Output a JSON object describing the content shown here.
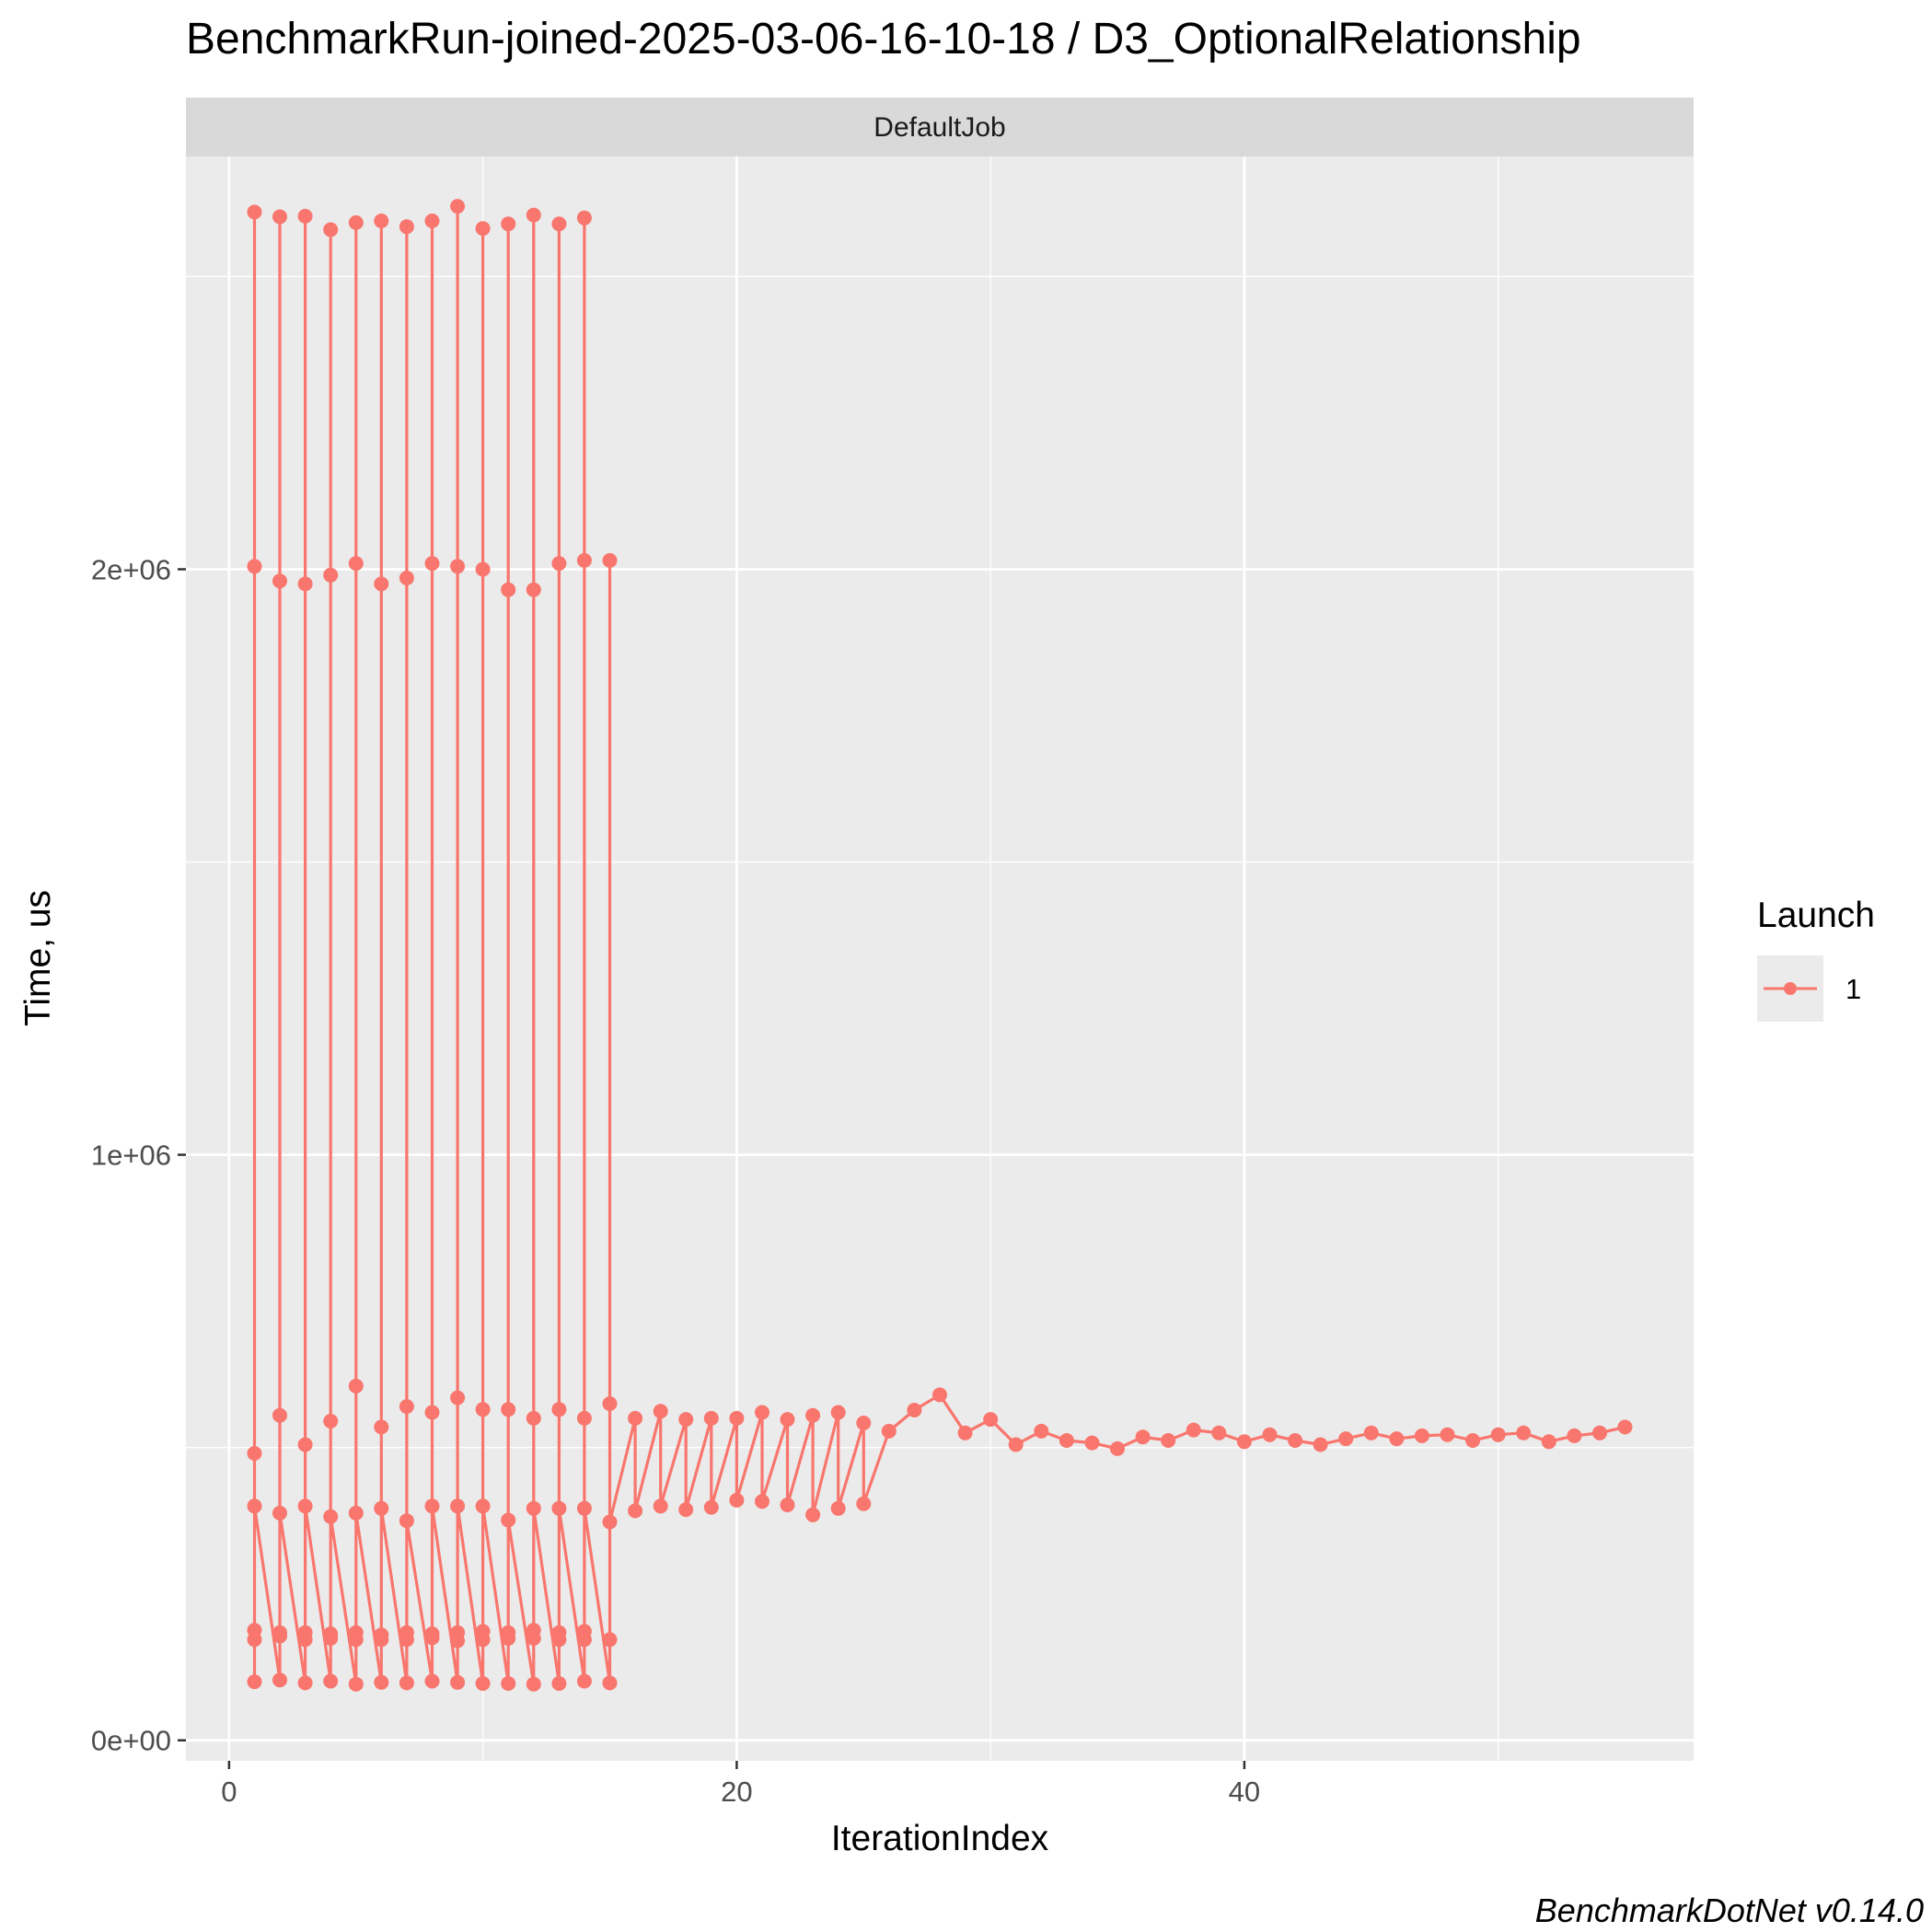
{
  "chart_data": {
    "type": "line",
    "title": "BenchmarkRun-joined-2025-03-06-16-10-18 / D3_OptionalRelationship",
    "facet": "DefaultJob",
    "xlabel": "IterationIndex",
    "ylabel": "Time, us",
    "caption": "BenchmarkDotNet v0.14.0",
    "xlim": [
      -1.7,
      57.7
    ],
    "ylim": [
      -35000,
      2705000
    ],
    "xticks": [
      0,
      20,
      40
    ],
    "xtick_labels": [
      "0",
      "20",
      "40"
    ],
    "yticks": [
      0,
      1000000,
      2000000
    ],
    "ytick_labels": [
      "0e+00",
      "1e+06",
      "2e+06"
    ],
    "grid": true,
    "legend": {
      "title": "Launch",
      "position": "right",
      "entries": [
        "1"
      ]
    },
    "series": [
      {
        "name": "1",
        "color": "#F8766D",
        "points": [
          [
            1,
            100000
          ],
          [
            1,
            172000
          ],
          [
            1,
            188000
          ],
          [
            1,
            2610000
          ],
          [
            1,
            2005000
          ],
          [
            1,
            490000
          ],
          [
            1,
            400000
          ],
          [
            2,
            103000
          ],
          [
            2,
            178000
          ],
          [
            2,
            184000
          ],
          [
            2,
            2602000
          ],
          [
            2,
            1980000
          ],
          [
            2,
            555000
          ],
          [
            2,
            388000
          ],
          [
            3,
            98000
          ],
          [
            3,
            172000
          ],
          [
            3,
            184000
          ],
          [
            3,
            2603000
          ],
          [
            3,
            1975000
          ],
          [
            3,
            505000
          ],
          [
            3,
            400000
          ],
          [
            4,
            101000
          ],
          [
            4,
            182000
          ],
          [
            4,
            174000
          ],
          [
            4,
            2580000
          ],
          [
            4,
            1990000
          ],
          [
            4,
            545000
          ],
          [
            4,
            382000
          ],
          [
            5,
            96000
          ],
          [
            5,
            172000
          ],
          [
            5,
            184000
          ],
          [
            5,
            2592000
          ],
          [
            5,
            2010000
          ],
          [
            5,
            605000
          ],
          [
            5,
            388000
          ],
          [
            6,
            99000
          ],
          [
            6,
            180000
          ],
          [
            6,
            172000
          ],
          [
            6,
            2595000
          ],
          [
            6,
            1975000
          ],
          [
            6,
            535000
          ],
          [
            6,
            396000
          ],
          [
            7,
            98000
          ],
          [
            7,
            172000
          ],
          [
            7,
            184000
          ],
          [
            7,
            2585000
          ],
          [
            7,
            1985000
          ],
          [
            7,
            570000
          ],
          [
            7,
            375000
          ],
          [
            8,
            101000
          ],
          [
            8,
            182000
          ],
          [
            8,
            175000
          ],
          [
            8,
            2595000
          ],
          [
            8,
            2010000
          ],
          [
            8,
            560000
          ],
          [
            8,
            400000
          ],
          [
            9,
            99000
          ],
          [
            9,
            170000
          ],
          [
            9,
            184000
          ],
          [
            9,
            2620000
          ],
          [
            9,
            2005000
          ],
          [
            9,
            585000
          ],
          [
            9,
            400000
          ],
          [
            10,
            97000
          ],
          [
            10,
            172000
          ],
          [
            10,
            186000
          ],
          [
            10,
            2582000
          ],
          [
            10,
            2000000
          ],
          [
            10,
            565000
          ],
          [
            10,
            400000
          ],
          [
            11,
            97000
          ],
          [
            11,
            184000
          ],
          [
            11,
            174000
          ],
          [
            11,
            2590000
          ],
          [
            11,
            1965000
          ],
          [
            11,
            565000
          ],
          [
            11,
            376000
          ],
          [
            12,
            96000
          ],
          [
            12,
            174000
          ],
          [
            12,
            188000
          ],
          [
            12,
            2605000
          ],
          [
            12,
            1965000
          ],
          [
            12,
            550000
          ],
          [
            12,
            396000
          ],
          [
            13,
            97000
          ],
          [
            13,
            184000
          ],
          [
            13,
            172000
          ],
          [
            13,
            2590000
          ],
          [
            13,
            2010000
          ],
          [
            13,
            565000
          ],
          [
            13,
            396000
          ],
          [
            14,
            101000
          ],
          [
            14,
            172000
          ],
          [
            14,
            186000
          ],
          [
            14,
            2600000
          ],
          [
            14,
            2015000
          ],
          [
            14,
            550000
          ],
          [
            14,
            396000
          ],
          [
            15,
            98000
          ],
          [
            15,
            172000
          ],
          [
            15,
            2015000
          ],
          [
            15,
            575000
          ],
          [
            15,
            373000
          ],
          [
            16,
            550000
          ],
          [
            16,
            392000
          ],
          [
            17,
            562000
          ],
          [
            17,
            400000
          ],
          [
            18,
            548000
          ],
          [
            18,
            394000
          ],
          [
            19,
            550000
          ],
          [
            19,
            398000
          ],
          [
            20,
            550000
          ],
          [
            20,
            410000
          ],
          [
            21,
            560000
          ],
          [
            21,
            408000
          ],
          [
            22,
            548000
          ],
          [
            22,
            402000
          ],
          [
            23,
            555000
          ],
          [
            23,
            385000
          ],
          [
            24,
            560000
          ],
          [
            24,
            396000
          ],
          [
            25,
            542000
          ],
          [
            25,
            404000
          ],
          [
            26,
            528000
          ],
          [
            27,
            564000
          ],
          [
            28,
            590000
          ],
          [
            29,
            525000
          ],
          [
            30,
            548000
          ],
          [
            31,
            505000
          ],
          [
            32,
            528000
          ],
          [
            33,
            512000
          ],
          [
            34,
            508000
          ],
          [
            35,
            498000
          ],
          [
            36,
            518000
          ],
          [
            37,
            512000
          ],
          [
            38,
            530000
          ],
          [
            39,
            525000
          ],
          [
            40,
            510000
          ],
          [
            41,
            522000
          ],
          [
            42,
            512000
          ],
          [
            43,
            505000
          ],
          [
            44,
            515000
          ],
          [
            45,
            525000
          ],
          [
            46,
            515000
          ],
          [
            47,
            520000
          ],
          [
            48,
            522000
          ],
          [
            49,
            512000
          ],
          [
            50,
            522000
          ],
          [
            51,
            525000
          ],
          [
            52,
            510000
          ],
          [
            53,
            520000
          ],
          [
            54,
            525000
          ],
          [
            55,
            535000
          ]
        ]
      }
    ]
  }
}
